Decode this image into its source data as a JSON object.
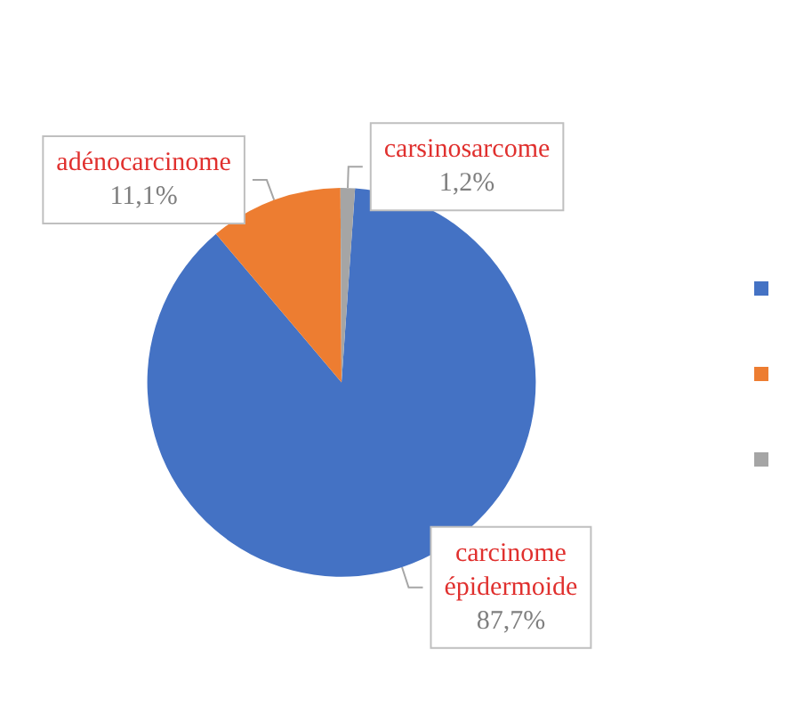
{
  "chart_data": {
    "type": "pie",
    "categories": [
      "carcinome épidermoide",
      "adénocarcinome",
      "carsinosarcome"
    ],
    "values": [
      87.7,
      11.1,
      1.2
    ],
    "value_labels": [
      "87,7%",
      "11,1%",
      "1,2%"
    ],
    "colors": [
      "#4472c4",
      "#ed7d31",
      "#a5a5a5"
    ]
  }
}
